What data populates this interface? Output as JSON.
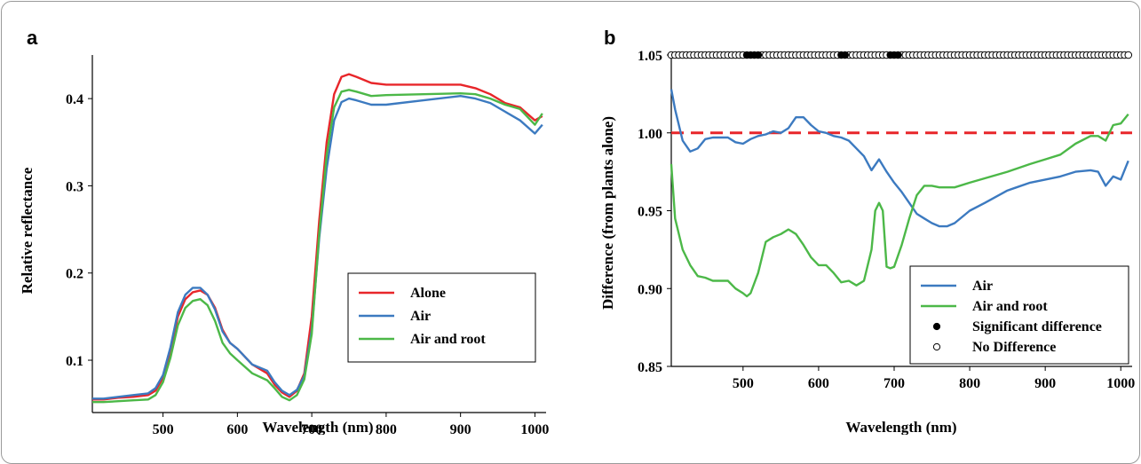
{
  "panels": {
    "a": {
      "label": "a"
    },
    "b": {
      "label": "b"
    }
  },
  "chart_data": [
    {
      "type": "line",
      "panel": "a",
      "title": "",
      "xlabel": "Wavelength (nm)",
      "ylabel": "Relative reflectance",
      "xlim": [
        405,
        1015
      ],
      "ylim": [
        0.04,
        0.45
      ],
      "xticks": [
        500,
        600,
        700,
        800,
        900,
        1000
      ],
      "yticks": [
        0.1,
        0.2,
        0.3,
        0.4
      ],
      "ytick_labels": [
        "0.1",
        "0.2",
        "0.3",
        "0.4"
      ],
      "legend_position": "bottom-right",
      "series": [
        {
          "name": "Alone",
          "color": "#e8262a",
          "x": [
            405,
            420,
            440,
            460,
            480,
            490,
            500,
            510,
            520,
            530,
            540,
            550,
            560,
            570,
            580,
            590,
            600,
            620,
            640,
            650,
            660,
            670,
            680,
            690,
            700,
            710,
            720,
            730,
            740,
            750,
            760,
            780,
            800,
            850,
            900,
            920,
            940,
            960,
            980,
            1000,
            1010
          ],
          "y": [
            0.055,
            0.055,
            0.057,
            0.058,
            0.06,
            0.065,
            0.08,
            0.11,
            0.15,
            0.17,
            0.178,
            0.18,
            0.175,
            0.16,
            0.135,
            0.12,
            0.113,
            0.095,
            0.085,
            0.072,
            0.063,
            0.058,
            0.065,
            0.085,
            0.15,
            0.26,
            0.35,
            0.405,
            0.425,
            0.428,
            0.425,
            0.418,
            0.416,
            0.416,
            0.416,
            0.412,
            0.405,
            0.395,
            0.39,
            0.375,
            0.38
          ]
        },
        {
          "name": "Air",
          "color": "#3c7ac0",
          "x": [
            405,
            420,
            440,
            460,
            480,
            490,
            500,
            510,
            520,
            530,
            540,
            550,
            560,
            570,
            580,
            590,
            600,
            620,
            640,
            650,
            660,
            670,
            680,
            690,
            700,
            710,
            720,
            730,
            740,
            750,
            760,
            780,
            800,
            850,
            900,
            920,
            940,
            960,
            980,
            1000,
            1010
          ],
          "y": [
            0.056,
            0.056,
            0.058,
            0.06,
            0.062,
            0.068,
            0.083,
            0.115,
            0.155,
            0.175,
            0.183,
            0.183,
            0.175,
            0.158,
            0.133,
            0.12,
            0.113,
            0.095,
            0.088,
            0.075,
            0.065,
            0.06,
            0.066,
            0.082,
            0.135,
            0.24,
            0.32,
            0.375,
            0.396,
            0.4,
            0.398,
            0.393,
            0.393,
            0.398,
            0.403,
            0.4,
            0.395,
            0.385,
            0.375,
            0.36,
            0.37
          ]
        },
        {
          "name": "Air and root",
          "color": "#4cb848",
          "x": [
            405,
            420,
            440,
            460,
            480,
            490,
            500,
            510,
            520,
            530,
            540,
            550,
            560,
            570,
            580,
            590,
            600,
            620,
            640,
            650,
            660,
            670,
            680,
            690,
            700,
            710,
            720,
            730,
            740,
            750,
            760,
            780,
            800,
            850,
            900,
            920,
            940,
            960,
            980,
            1000,
            1010
          ],
          "y": [
            0.052,
            0.052,
            0.053,
            0.054,
            0.055,
            0.06,
            0.075,
            0.103,
            0.14,
            0.16,
            0.168,
            0.17,
            0.163,
            0.145,
            0.12,
            0.108,
            0.1,
            0.085,
            0.077,
            0.068,
            0.058,
            0.054,
            0.06,
            0.078,
            0.13,
            0.245,
            0.335,
            0.39,
            0.408,
            0.41,
            0.408,
            0.403,
            0.404,
            0.405,
            0.406,
            0.405,
            0.4,
            0.393,
            0.388,
            0.37,
            0.383
          ]
        }
      ]
    },
    {
      "type": "line",
      "panel": "b",
      "title": "",
      "xlabel": "Wavelength (nm)",
      "ylabel": "Difference (from plants alone)",
      "xlim": [
        405,
        1015
      ],
      "ylim": [
        0.85,
        1.05
      ],
      "xticks": [
        500,
        600,
        700,
        800,
        900,
        1000
      ],
      "yticks": [
        0.85,
        0.9,
        0.95,
        1.0,
        1.05
      ],
      "ytick_labels": [
        "0.85",
        "0.90",
        "0.95",
        "1.00",
        "1.05"
      ],
      "legend_position": "bottom-right",
      "reference_line": {
        "y": 1.0,
        "color": "#e8262a",
        "style": "dashed"
      },
      "series": [
        {
          "name": "Air",
          "color": "#3c7ac0",
          "x": [
            405,
            410,
            420,
            430,
            440,
            450,
            460,
            470,
            480,
            490,
            500,
            510,
            520,
            530,
            540,
            550,
            560,
            570,
            580,
            590,
            600,
            610,
            620,
            630,
            640,
            650,
            660,
            670,
            680,
            690,
            700,
            710,
            720,
            730,
            740,
            750,
            760,
            770,
            780,
            800,
            820,
            850,
            880,
            900,
            920,
            940,
            960,
            970,
            980,
            990,
            1000,
            1010
          ],
          "y": [
            1.028,
            1.015,
            0.995,
            0.988,
            0.99,
            0.996,
            0.997,
            0.997,
            0.997,
            0.994,
            0.993,
            0.996,
            0.998,
            0.999,
            1.001,
            1.0,
            1.003,
            1.01,
            1.01,
            1.005,
            1.001,
            1.0,
            0.998,
            0.997,
            0.995,
            0.99,
            0.985,
            0.976,
            0.983,
            0.975,
            0.968,
            0.962,
            0.955,
            0.948,
            0.945,
            0.942,
            0.94,
            0.94,
            0.942,
            0.95,
            0.955,
            0.963,
            0.968,
            0.97,
            0.972,
            0.975,
            0.976,
            0.975,
            0.966,
            0.972,
            0.97,
            0.982
          ]
        },
        {
          "name": "Air and root",
          "color": "#4cb848",
          "x": [
            405,
            410,
            420,
            430,
            440,
            450,
            460,
            470,
            480,
            490,
            500,
            505,
            510,
            520,
            530,
            540,
            550,
            560,
            570,
            580,
            590,
            600,
            610,
            620,
            630,
            640,
            650,
            660,
            670,
            675,
            680,
            685,
            690,
            695,
            700,
            710,
            720,
            730,
            740,
            750,
            760,
            780,
            800,
            850,
            880,
            900,
            920,
            940,
            960,
            970,
            980,
            990,
            1000,
            1010
          ],
          "y": [
            0.98,
            0.945,
            0.925,
            0.915,
            0.908,
            0.907,
            0.905,
            0.905,
            0.905,
            0.9,
            0.897,
            0.895,
            0.897,
            0.91,
            0.93,
            0.933,
            0.935,
            0.938,
            0.935,
            0.928,
            0.92,
            0.915,
            0.915,
            0.91,
            0.904,
            0.905,
            0.902,
            0.905,
            0.925,
            0.95,
            0.955,
            0.95,
            0.914,
            0.913,
            0.914,
            0.928,
            0.945,
            0.96,
            0.966,
            0.966,
            0.965,
            0.965,
            0.968,
            0.975,
            0.98,
            0.983,
            0.986,
            0.993,
            0.998,
            0.998,
            0.995,
            1.005,
            1.006,
            1.012
          ]
        },
        {
          "name": "Significant difference",
          "marker": "filled-circle",
          "y_position": 1.05,
          "x": [
            505,
            510,
            515,
            520,
            630,
            635,
            695,
            700,
            705
          ]
        },
        {
          "name": "No Difference",
          "marker": "open-circle",
          "y_position": 1.05,
          "x_range": [
            405,
            1010
          ],
          "x_step": 5
        }
      ]
    }
  ]
}
